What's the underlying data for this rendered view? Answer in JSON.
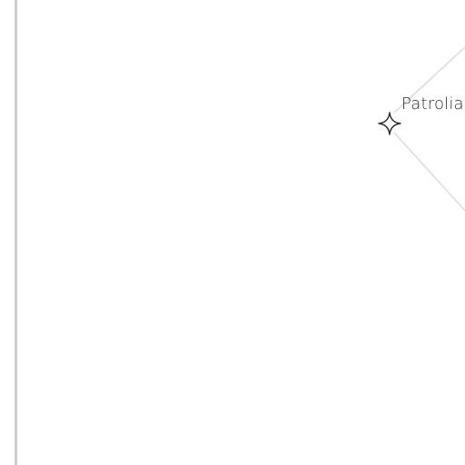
{
  "map": {
    "node": {
      "label": "Patrolia",
      "icon": "star-marker-icon"
    },
    "colors": {
      "background": "#ffffff",
      "border": "#cfcfcf",
      "connector": "#e2e2e2",
      "icon_stroke": "#2a2a2a"
    }
  }
}
